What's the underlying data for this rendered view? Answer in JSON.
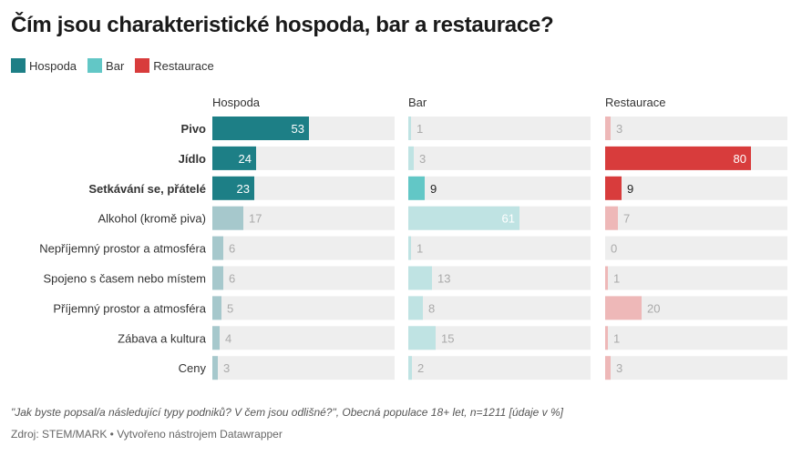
{
  "title": "Čím jsou charakteristické hospoda, bar a restaurace?",
  "legend": [
    {
      "label": "Hospoda",
      "color": "#1d7f86"
    },
    {
      "label": "Bar",
      "color": "#62c7c6"
    },
    {
      "label": "Restaurace",
      "color": "#d83c3c"
    }
  ],
  "footnote": "\"Jak byste popsal/a následující typy podniků? V čem jsou odlišné?\", Obecná populace 18+ let, n=1211 [údaje v %]",
  "source": "Zdroj: STEM/MARK • Vytvořeno nástrojem Datawrapper",
  "chart_data": {
    "type": "bar",
    "title": "Čím jsou charakteristické hospoda, bar a restaurace?",
    "categories": [
      "Pivo",
      "Jídlo",
      "Setkávání se, přátelé",
      "Alkohol (kromě piva)",
      "Nepříjemný prostor a atmosféra",
      "Spojeno s časem nebo místem",
      "Příjemný prostor a atmosféra",
      "Zábava a kultura",
      "Ceny"
    ],
    "highlighted": [
      {
        "Hospoda": true,
        "Bar": false,
        "Restaurace": false
      },
      {
        "Hospoda": true,
        "Bar": false,
        "Restaurace": true
      },
      {
        "Hospoda": true,
        "Bar": true,
        "Restaurace": true
      },
      {
        "Hospoda": false,
        "Bar": false,
        "Restaurace": false
      },
      {
        "Hospoda": false,
        "Bar": false,
        "Restaurace": false
      },
      {
        "Hospoda": false,
        "Bar": false,
        "Restaurace": false
      },
      {
        "Hospoda": false,
        "Bar": false,
        "Restaurace": false
      },
      {
        "Hospoda": false,
        "Bar": false,
        "Restaurace": false
      },
      {
        "Hospoda": false,
        "Bar": false,
        "Restaurace": false
      }
    ],
    "series": [
      {
        "name": "Hospoda",
        "color": "#1d7f86",
        "faded_color": "#a6c8cc",
        "values": [
          53,
          24,
          23,
          17,
          6,
          6,
          5,
          4,
          3
        ]
      },
      {
        "name": "Bar",
        "color": "#62c7c6",
        "faded_color": "#bfe3e3",
        "values": [
          1,
          3,
          9,
          61,
          1,
          13,
          8,
          15,
          2
        ]
      },
      {
        "name": "Restaurace",
        "color": "#d83c3c",
        "faded_color": "#eeb8b8",
        "values": [
          3,
          80,
          9,
          7,
          0,
          1,
          20,
          1,
          3
        ]
      }
    ],
    "xlim": [
      0,
      100
    ],
    "background_color": "#eeeeee",
    "unit": "%"
  }
}
